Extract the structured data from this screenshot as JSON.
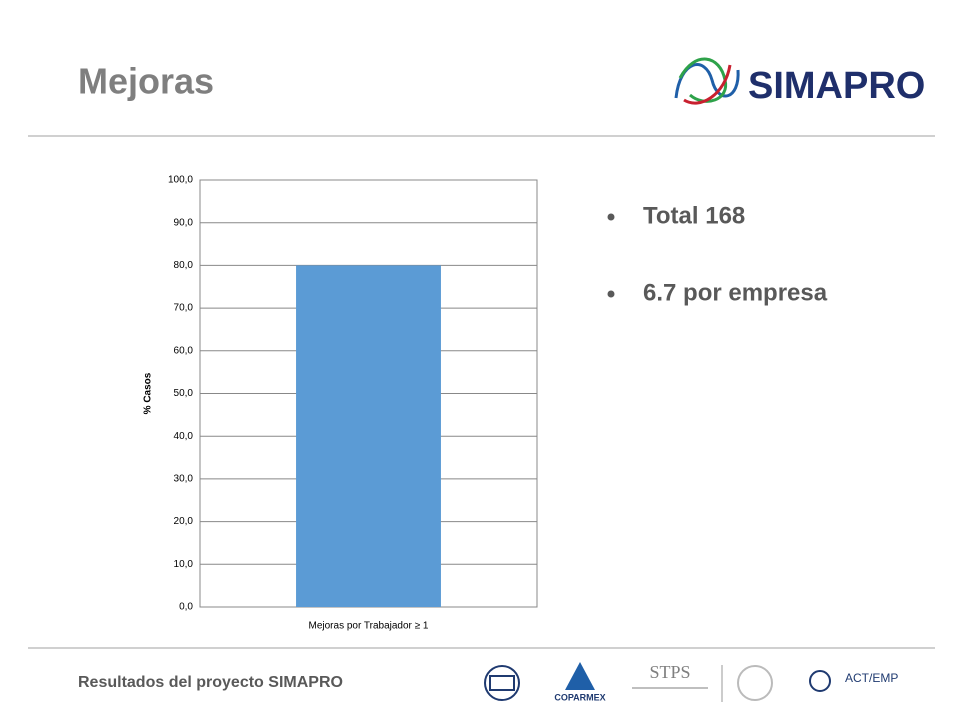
{
  "title": "Mejoras",
  "logo": "SIMAPRO",
  "bullets": [
    "Total 168",
    "6.7 por empresa"
  ],
  "footer": "Resultados del proyecto SIMAPRO",
  "footer_logos": [
    "STPS",
    "COPARMEX",
    "ACT/EMP"
  ],
  "chart_data": {
    "type": "bar",
    "categories": [
      "Mejoras por Trabajador ≥ 1"
    ],
    "values": [
      80
    ],
    "color": "#5b9bd5",
    "ylabel": "% Casos",
    "ylim": [
      0,
      100
    ],
    "yticks": [
      {
        "value": 0,
        "label": "0,0"
      },
      {
        "value": 10,
        "label": "10,0"
      },
      {
        "value": 20,
        "label": "20,0"
      },
      {
        "value": 30,
        "label": "30,0"
      },
      {
        "value": 40,
        "label": "40,0"
      },
      {
        "value": 50,
        "label": "50,0"
      },
      {
        "value": 60,
        "label": "60,0"
      },
      {
        "value": 70,
        "label": "70,0"
      },
      {
        "value": 80,
        "label": "80,0"
      },
      {
        "value": 90,
        "label": "90,0"
      },
      {
        "value": 100,
        "label": "100,0"
      }
    ],
    "grid": true
  }
}
